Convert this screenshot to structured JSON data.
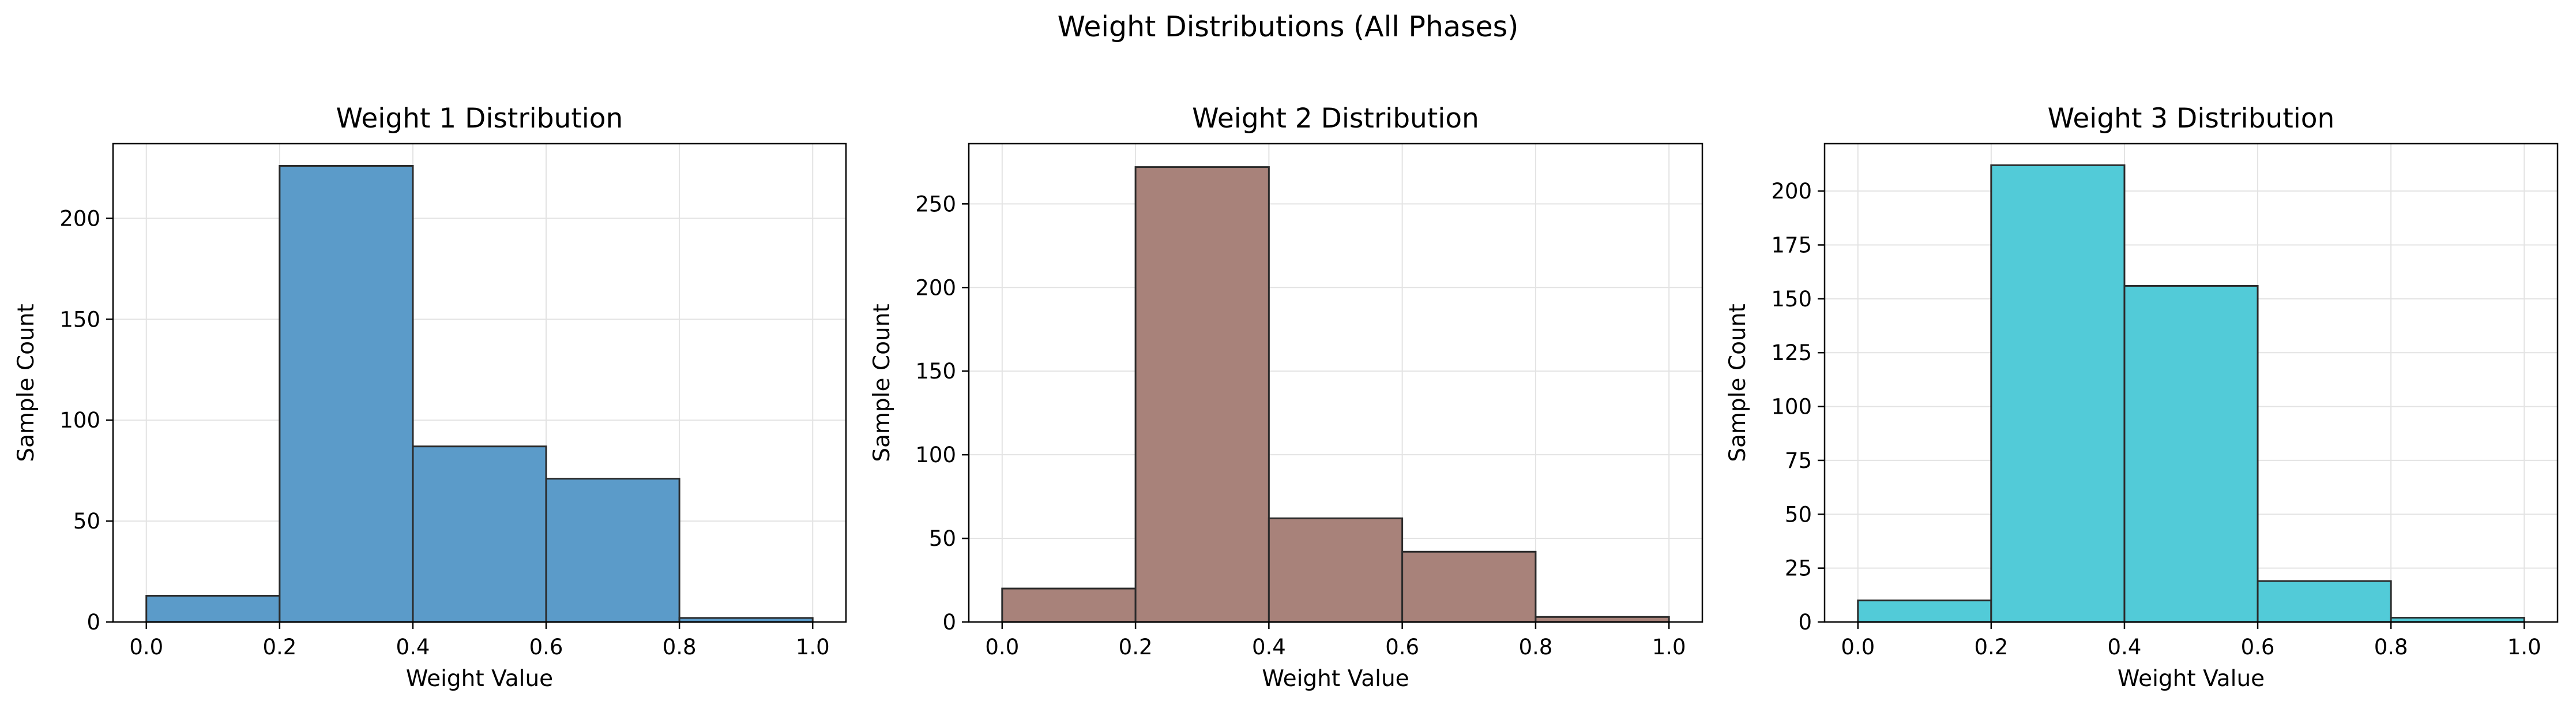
{
  "suptitle": "Weight Distributions (All Phases)",
  "chart_data": [
    {
      "type": "bar",
      "title": "Weight 1 Distribution",
      "xlabel": "Weight Value",
      "ylabel": "Sample Count",
      "bin_edges": [
        0.0,
        0.2,
        0.4,
        0.6,
        0.8,
        1.0
      ],
      "values": [
        13,
        226,
        87,
        71,
        2
      ],
      "xlim": [
        -0.05,
        1.05
      ],
      "ylim": [
        0,
        237
      ],
      "xticks": [
        "0.0",
        "0.2",
        "0.4",
        "0.6",
        "0.8",
        "1.0"
      ],
      "yticks": [
        0,
        50,
        100,
        150,
        200
      ],
      "color": "#5b9bc9",
      "grid": true
    },
    {
      "type": "bar",
      "title": "Weight 2 Distribution",
      "xlabel": "Weight Value",
      "ylabel": "Sample Count",
      "bin_edges": [
        0.0,
        0.2,
        0.4,
        0.6,
        0.8,
        1.0
      ],
      "values": [
        20,
        272,
        62,
        42,
        3
      ],
      "xlim": [
        -0.05,
        1.05
      ],
      "ylim": [
        0,
        286
      ],
      "xticks": [
        "0.0",
        "0.2",
        "0.4",
        "0.6",
        "0.8",
        "1.0"
      ],
      "yticks": [
        0,
        50,
        100,
        150,
        200,
        250
      ],
      "color": "#a8827a",
      "grid": true
    },
    {
      "type": "bar",
      "title": "Weight 3 Distribution",
      "xlabel": "Weight Value",
      "ylabel": "Sample Count",
      "bin_edges": [
        0.0,
        0.2,
        0.4,
        0.6,
        0.8,
        1.0
      ],
      "values": [
        10,
        212,
        156,
        19,
        2
      ],
      "xlim": [
        -0.05,
        1.05
      ],
      "ylim": [
        0,
        222
      ],
      "xticks": [
        "0.0",
        "0.2",
        "0.4",
        "0.6",
        "0.8",
        "1.0"
      ],
      "yticks": [
        0,
        25,
        50,
        75,
        100,
        125,
        150,
        175,
        200
      ],
      "color": "#52cbd8",
      "grid": true
    }
  ]
}
